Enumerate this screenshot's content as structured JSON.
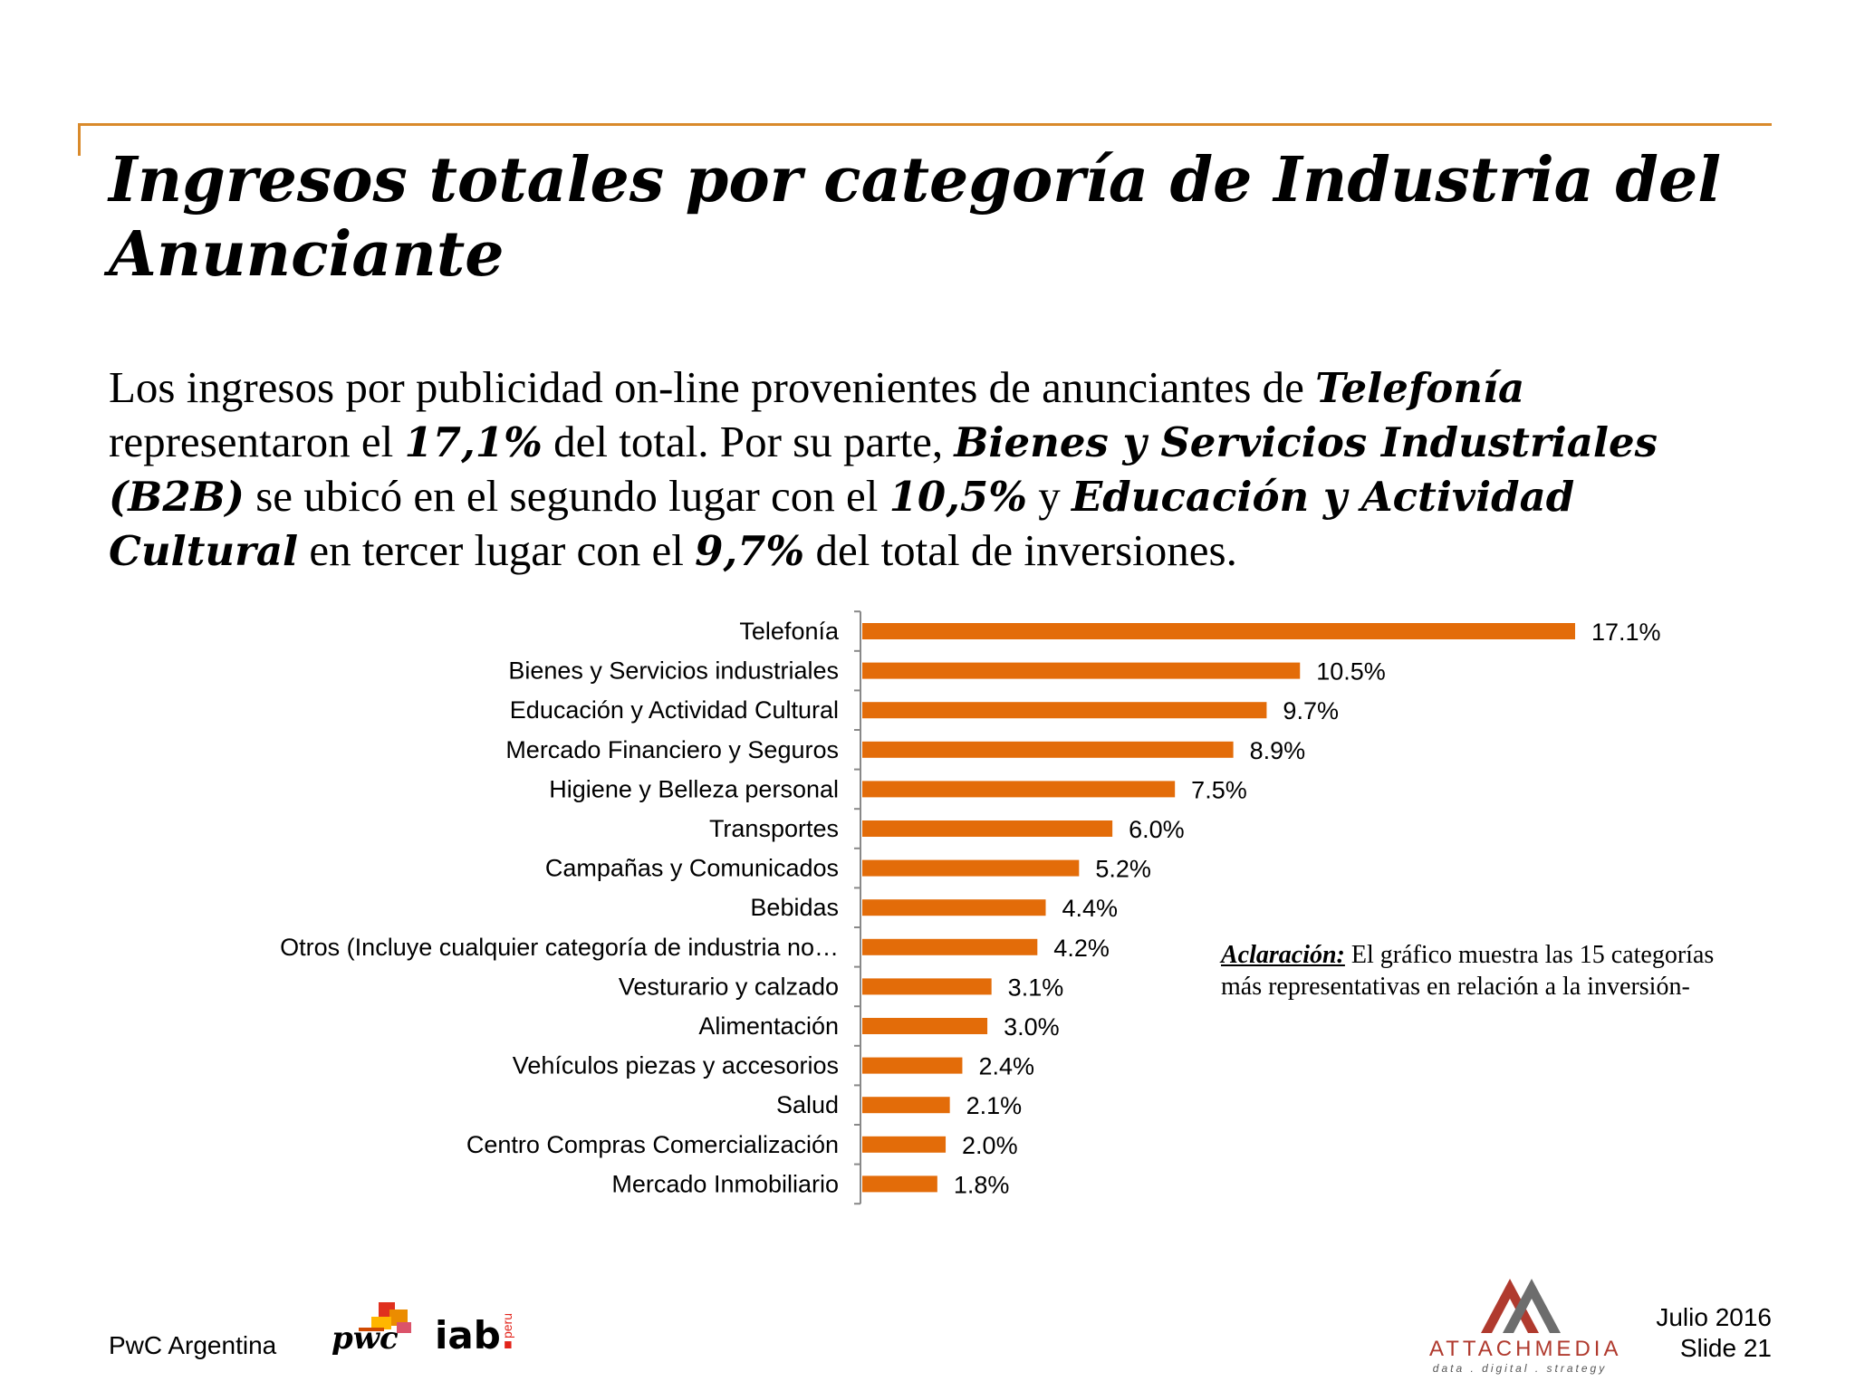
{
  "slide": {
    "title": "Ingresos totales por categoría de Industria del Anunciante",
    "body": {
      "s1": "Los ingresos por publicidad on-line provenientes de anunciantes de ",
      "b1": "Telefonía",
      "s2": " representaron el ",
      "b2": "17,1%",
      "s3": " del total. Por su parte, ",
      "b3": "Bienes y Servicios Industriales (B2B)",
      "s4": " se ubicó en el segundo lugar con el ",
      "b4": "10,5%",
      "s5": " y ",
      "b5": "Educación y Actividad Cultural",
      "s6": " en tercer lugar con el ",
      "b6": "9,7%",
      "s7": " del total de inversiones."
    },
    "note": {
      "label": "Aclaración:",
      "text": " El gráfico muestra las 15 categorías más representativas en relación a la inversión-"
    },
    "footer": {
      "org": "PwC Argentina",
      "pwc_logo": "pwc",
      "iab_logo_main": "iab",
      "iab_logo_dot": ".",
      "iab_logo_sub": "peru",
      "attach_name": "ATTACHMEDIA",
      "attach_tagline": "data . digital . strategy",
      "date": "Julio 2016",
      "slide_no": "Slide 21"
    },
    "colors": {
      "accent": "#d98a2b",
      "bar": "#e36c09",
      "attach": "#b03a2e"
    }
  },
  "chart_data": {
    "type": "bar",
    "orientation": "horizontal",
    "categories": [
      "Telefonía",
      "Bienes y Servicios industriales",
      "Educación y Actividad Cultural",
      "Mercado Financiero y Seguros",
      "Higiene y Belleza personal",
      "Transportes",
      "Campañas y Comunicados",
      "Bebidas",
      "Otros (Incluye cualquier categoría de industria no…",
      "Vesturario y calzado",
      "Alimentación",
      "Vehículos piezas y accesorios",
      "Salud",
      "Centro Compras Comercialización",
      "Mercado Inmobiliario"
    ],
    "values": [
      17.1,
      10.5,
      9.7,
      8.9,
      7.5,
      6.0,
      5.2,
      4.4,
      4.2,
      3.1,
      3.0,
      2.4,
      2.1,
      2.0,
      1.8
    ],
    "labels": [
      "17.1%",
      "10.5%",
      "9.7%",
      "8.9%",
      "7.5%",
      "6.0%",
      "5.2%",
      "4.4%",
      "4.2%",
      "3.1%",
      "3.0%",
      "2.4%",
      "2.1%",
      "2.0%",
      "1.8%"
    ],
    "xlim": [
      0,
      17.1
    ],
    "grid": false,
    "legend": "none"
  }
}
